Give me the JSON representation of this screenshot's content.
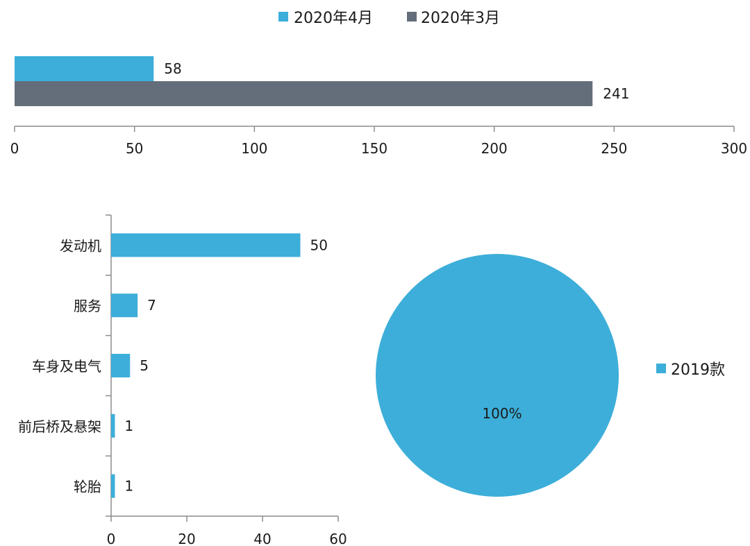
{
  "colors": {
    "blue": "#3daed9",
    "gray": "#646e7a",
    "axis": "#8c8c8c"
  },
  "chart_data": [
    {
      "type": "bar",
      "orientation": "horizontal",
      "title": "",
      "series": [
        {
          "name": "2020年4月",
          "values": [
            58
          ],
          "color": "#3daed9"
        },
        {
          "name": "2020年3月",
          "values": [
            241
          ],
          "color": "#646e7a"
        }
      ],
      "xlim": [
        0,
        300
      ],
      "xticks": [
        0,
        50,
        100,
        150,
        200,
        250,
        300
      ],
      "legend": "top-center",
      "grid": false
    },
    {
      "type": "bar",
      "orientation": "horizontal",
      "title": "",
      "categories": [
        "发动机",
        "服务",
        "车身及电气",
        "前后桥及悬架",
        "轮胎"
      ],
      "values": [
        50,
        7,
        5,
        1,
        1
      ],
      "color": "#3daed9",
      "xlim": [
        0,
        60
      ],
      "xticks": [
        0,
        20,
        40,
        60
      ],
      "grid": false
    },
    {
      "type": "pie",
      "title": "",
      "slices": [
        {
          "name": "2019款",
          "percent": 100,
          "label": "100%",
          "color": "#3daed9"
        }
      ],
      "legend": "right"
    }
  ]
}
